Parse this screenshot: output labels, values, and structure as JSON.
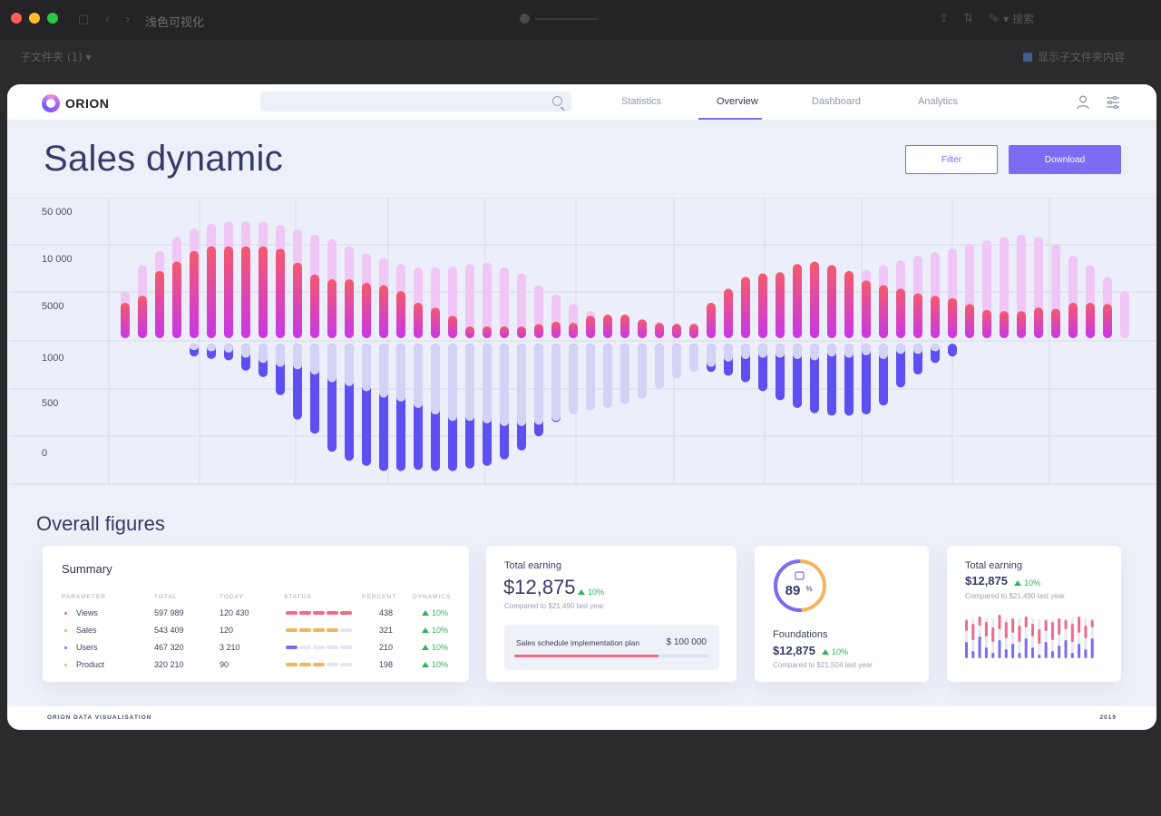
{
  "os": {
    "window_title": "浅色可视化",
    "folder_label": "子文件夹 (1) ▾",
    "show_subfolder_label": "显示子文件夹内容",
    "search_label": "搜索"
  },
  "brand": {
    "name": "ORION"
  },
  "nav": {
    "tabs": [
      {
        "label": "Statistics"
      },
      {
        "label": "Overview"
      },
      {
        "label": "Dashboard"
      },
      {
        "label": "Analytics"
      }
    ],
    "active_tab": "Overview"
  },
  "header": {
    "title": "Sales dynamic",
    "filter_label": "Filter",
    "download_label": "Download"
  },
  "chart_data": {
    "type": "bar",
    "y_ticks": [
      "50 000",
      "10 000",
      "5000",
      "1000",
      "500",
      "0"
    ],
    "series": [
      {
        "values": [
          0.4,
          0.62,
          0.74,
          0.86,
          0.93,
          0.97,
          0.99,
          0.99,
          0.99,
          0.96,
          0.92,
          0.88,
          0.84,
          0.78,
          0.72,
          0.68,
          0.63,
          0.6,
          0.6,
          0.61,
          0.63,
          0.64,
          0.6,
          0.55,
          0.45,
          0.37,
          0.29,
          0.23,
          0.19,
          0.17,
          0.15,
          0.14,
          0.13,
          0.13,
          0.12,
          0.12,
          0.13,
          0.16,
          0.19,
          0.25,
          0.33,
          0.43,
          0.52,
          0.58,
          0.62,
          0.66,
          0.7,
          0.73,
          0.76,
          0.8,
          0.83,
          0.86,
          0.88,
          0.86,
          0.8,
          0.7,
          0.62,
          0.52,
          0.4
        ]
      },
      {
        "values": [
          0.3,
          0.36,
          0.57,
          0.65,
          0.74,
          0.78,
          0.78,
          0.78,
          0.78,
          0.76,
          0.64,
          0.54,
          0.5,
          0.5,
          0.47,
          0.45,
          0.4,
          0.3,
          0.26,
          0.19,
          0.1,
          0.1,
          0.1,
          0.1,
          0.12,
          0.14,
          0.13,
          0.19,
          0.2,
          0.2,
          0.16,
          0.13,
          0.12,
          0.12,
          0.3,
          0.42,
          0.52,
          0.55,
          0.56,
          0.63,
          0.65,
          0.62,
          0.57,
          0.49,
          0.45,
          0.42,
          0.38,
          0.36,
          0.34,
          0.29,
          0.24,
          0.23,
          0.23,
          0.26,
          0.25,
          0.3,
          0.3,
          0.29
        ]
      },
      {
        "values": [
          0,
          0,
          0,
          0,
          0.1,
          0.12,
          0.13,
          0.21,
          0.26,
          0.4,
          0.59,
          0.7,
          0.84,
          0.91,
          0.95,
          0.99,
          0.99,
          0.98,
          0.99,
          0.99,
          0.97,
          0.95,
          0.9,
          0.83,
          0.72,
          0.61,
          0.52,
          0.43,
          0.35,
          0.3,
          0.25,
          0.22,
          0.2,
          0.21,
          0.22,
          0.25,
          0.3,
          0.37,
          0.44,
          0.5,
          0.54,
          0.56,
          0.56,
          0.55,
          0.48,
          0.34,
          0.24,
          0.15,
          0.1,
          0,
          0,
          0,
          0,
          0,
          0,
          0,
          0,
          0
        ]
      },
      {
        "values": [
          0,
          0,
          0,
          0,
          0.05,
          0.06,
          0.07,
          0.11,
          0.15,
          0.18,
          0.2,
          0.24,
          0.3,
          0.33,
          0.37,
          0.42,
          0.45,
          0.5,
          0.55,
          0.6,
          0.6,
          0.62,
          0.64,
          0.64,
          0.63,
          0.6,
          0.55,
          0.52,
          0.5,
          0.47,
          0.43,
          0.35,
          0.27,
          0.22,
          0.18,
          0.14,
          0.12,
          0.11,
          0.11,
          0.12,
          0.13,
          0.1,
          0.11,
          0.09,
          0.12,
          0.08,
          0.08,
          0.06,
          0,
          0,
          0,
          0,
          0,
          0,
          0,
          0,
          0
        ]
      }
    ]
  },
  "overall": {
    "title": "Overall figures"
  },
  "summary": {
    "title": "Summary",
    "headers": {
      "parameter": "PARAMETER",
      "total": "TOTAL",
      "today": "TODAY",
      "status": "STATUS",
      "percent": "PERCENT",
      "dynamics": "DYNAMICS"
    },
    "rows": [
      {
        "param": "Views",
        "total": "597 989",
        "today": "120 430",
        "percent": "438",
        "dynamics": "10%",
        "status_fill": 5,
        "color": "#ef6a8a"
      },
      {
        "param": "Sales",
        "total": "543 409",
        "today": "120",
        "percent": "321",
        "dynamics": "10%",
        "status_fill": 4,
        "color": "#f2b45c"
      },
      {
        "param": "Users",
        "total": "467 320",
        "today": "3 210",
        "percent": "210",
        "dynamics": "10%",
        "status_fill": 1,
        "color": "#7b6cf1"
      },
      {
        "param": "Product",
        "total": "320 210",
        "today": "90",
        "percent": "198",
        "dynamics": "10%",
        "status_fill": 3,
        "color": "#f2b45c"
      }
    ]
  },
  "earning": {
    "label": "Total earning",
    "value": "$12,875",
    "pct": "10%",
    "compare": "Compared to $21,490 last year",
    "plan_label": "Sales schedule implementation plan",
    "plan_value": "$ 100 000",
    "plan_fraction": 0.74
  },
  "foundations": {
    "ring_value": "89",
    "ring_unit": "%",
    "ring_fraction": 0.89,
    "label": "Foundations",
    "value": "$12,875",
    "pct": "10%",
    "compare": "Compared to $21,504 last year"
  },
  "earning2": {
    "label": "Total earning",
    "value": "$12,875",
    "pct": "10%",
    "compare": "Compared to $21,490 last year"
  },
  "footer": {
    "left": "ORION DATA VISUALISATION",
    "right": "2019"
  }
}
